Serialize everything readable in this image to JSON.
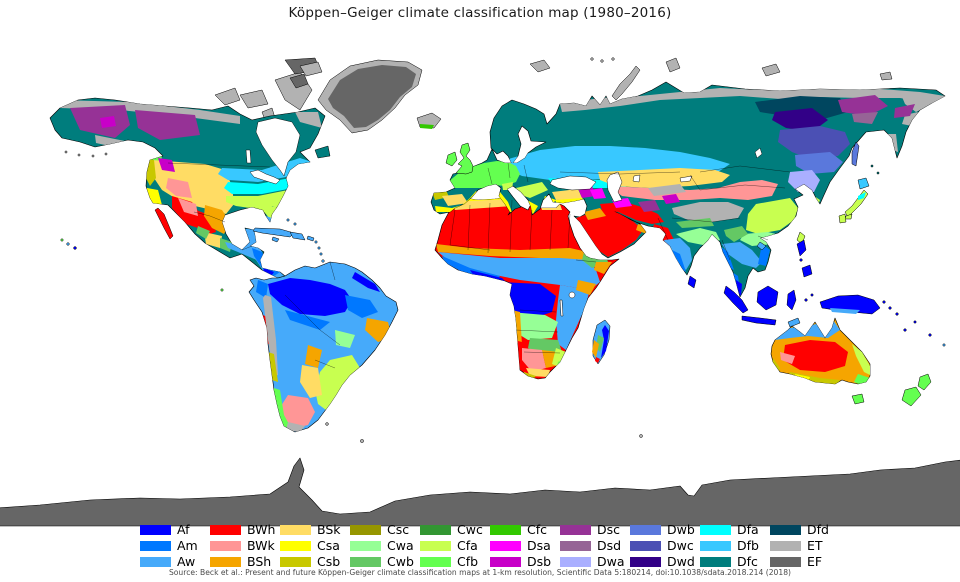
{
  "title": "Köppen–Geiger climate classification map (1980–2016)",
  "source": "Source: Beck et al.: Present and future Köppen-Geiger climate classification maps at 1-km resolution, Scientific Data 5:180214, doi:10.1038/sdata.2018.214 (2018)",
  "map": {
    "ocean_color": "#FFFFFF",
    "coastline_color": "#000000",
    "country_border_color": "#000000"
  },
  "chart_data": {
    "type": "heatmap",
    "title": "Köppen–Geiger climate classification map (1980–2016)",
    "legend_position": "bottom",
    "categories": [
      "Af",
      "Am",
      "Aw",
      "BWh",
      "BWk",
      "BSh",
      "BSk",
      "Csa",
      "Csb",
      "Csc",
      "Cwa",
      "Cwb",
      "Cwc",
      "Cfa",
      "Cfb",
      "Cfc",
      "Dsa",
      "Dsb",
      "Dsc",
      "Dsd",
      "Dwa",
      "Dwb",
      "Dwc",
      "Dwd",
      "Dfa",
      "Dfb",
      "Dfc",
      "Dfd",
      "ET",
      "EF"
    ]
  },
  "legend": {
    "entries": [
      {
        "code": "Af",
        "color": "#0000FF"
      },
      {
        "code": "Am",
        "color": "#0078FF"
      },
      {
        "code": "Aw",
        "color": "#46AAFA"
      },
      {
        "code": "BWh",
        "color": "#FF0000"
      },
      {
        "code": "BWk",
        "color": "#FF9696"
      },
      {
        "code": "BSh",
        "color": "#F5A500"
      },
      {
        "code": "BSk",
        "color": "#FFDC64"
      },
      {
        "code": "Csa",
        "color": "#FFFF00"
      },
      {
        "code": "Csb",
        "color": "#C8C800"
      },
      {
        "code": "Csc",
        "color": "#969600"
      },
      {
        "code": "Cwa",
        "color": "#96FF96"
      },
      {
        "code": "Cwb",
        "color": "#64C864"
      },
      {
        "code": "Cwc",
        "color": "#329632"
      },
      {
        "code": "Cfa",
        "color": "#C8FF50"
      },
      {
        "code": "Cfb",
        "color": "#64FF50"
      },
      {
        "code": "Cfc",
        "color": "#32C800"
      },
      {
        "code": "Dsa",
        "color": "#FF00FF"
      },
      {
        "code": "Dsb",
        "color": "#C800C8"
      },
      {
        "code": "Dsc",
        "color": "#963296"
      },
      {
        "code": "Dsd",
        "color": "#966496"
      },
      {
        "code": "Dwa",
        "color": "#AAAFFF"
      },
      {
        "code": "Dwb",
        "color": "#5A78DC"
      },
      {
        "code": "Dwc",
        "color": "#4B50B4"
      },
      {
        "code": "Dwd",
        "color": "#320087"
      },
      {
        "code": "Dfa",
        "color": "#00FFFF"
      },
      {
        "code": "Dfb",
        "color": "#38C8FF"
      },
      {
        "code": "Dfc",
        "color": "#007D7D"
      },
      {
        "code": "Dfd",
        "color": "#00465F"
      },
      {
        "code": "ET",
        "color": "#B2B2B2"
      },
      {
        "code": "EF",
        "color": "#666666"
      }
    ]
  }
}
